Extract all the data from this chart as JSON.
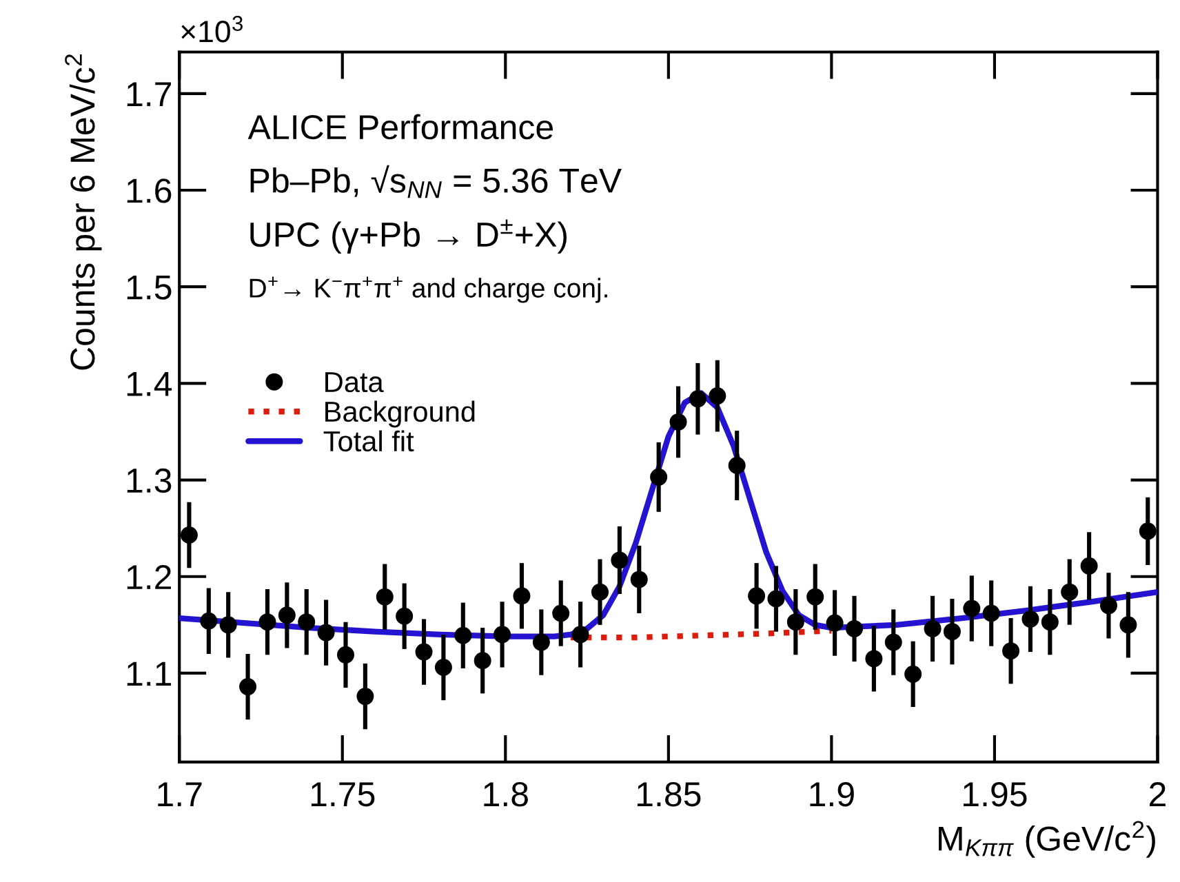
{
  "chart_data": {
    "type": "scatter",
    "xlabel": "M$_{Kππ}$ (GeV/c$^{2}$)",
    "ylabel": "Counts per 6 MeV/c$^{2}$",
    "annotations": [
      "×10$^{3}$",
      "ALICE Performance",
      "Pb–Pb, √s$_{NN}$ = 5.36 TeV",
      "UPC (γ+Pb → D$^{±}$+X)",
      "D$^{+}$→ K$^{−}$π$^{+}$π$^{+}$ and charge conj."
    ],
    "xlim": [
      1.7,
      2.0
    ],
    "ylim": [
      1.008,
      1.743
    ],
    "xticks": [
      1.7,
      1.75,
      1.8,
      1.85,
      1.9,
      1.95,
      {
        "value": 2.0,
        "label": "2"
      }
    ],
    "yticks": [
      1.1,
      1.2,
      1.3,
      1.4,
      1.5,
      1.6,
      1.7
    ],
    "grid": false,
    "legend": "center left",
    "series": [
      {
        "name": "Data",
        "marker": "circle",
        "color": "#000000",
        "x": [
          1.703,
          1.709,
          1.715,
          1.721,
          1.727,
          1.733,
          1.739,
          1.745,
          1.751,
          1.757,
          1.763,
          1.769,
          1.775,
          1.781,
          1.787,
          1.793,
          1.799,
          1.805,
          1.811,
          1.817,
          1.823,
          1.829,
          1.835,
          1.841,
          1.847,
          1.853,
          1.859,
          1.865,
          1.871,
          1.877,
          1.883,
          1.889,
          1.895,
          1.901,
          1.907,
          1.913,
          1.919,
          1.925,
          1.931,
          1.937,
          1.943,
          1.949,
          1.955,
          1.961,
          1.967,
          1.973,
          1.979,
          1.985,
          1.991,
          1.997
        ],
        "values": [
          1.243,
          1.154,
          1.15,
          1.086,
          1.153,
          1.16,
          1.153,
          1.142,
          1.119,
          1.076,
          1.179,
          1.159,
          1.122,
          1.106,
          1.139,
          1.113,
          1.14,
          1.18,
          1.132,
          1.162,
          1.14,
          1.184,
          1.217,
          1.197,
          1.303,
          1.36,
          1.384,
          1.387,
          1.315,
          1.18,
          1.177,
          1.153,
          1.179,
          1.152,
          1.146,
          1.115,
          1.132,
          1.099,
          1.146,
          1.143,
          1.167,
          1.162,
          1.123,
          1.156,
          1.153,
          1.184,
          1.211,
          1.17,
          1.15,
          1.247
        ],
        "errors": [
          0.034,
          0.034,
          0.034,
          0.034,
          0.034,
          0.034,
          0.034,
          0.034,
          0.034,
          0.034,
          0.034,
          0.034,
          0.034,
          0.034,
          0.034,
          0.034,
          0.034,
          0.034,
          0.034,
          0.034,
          0.034,
          0.034,
          0.035,
          0.035,
          0.036,
          0.037,
          0.037,
          0.037,
          0.036,
          0.034,
          0.034,
          0.034,
          0.034,
          0.034,
          0.034,
          0.034,
          0.034,
          0.034,
          0.034,
          0.034,
          0.034,
          0.034,
          0.034,
          0.034,
          0.034,
          0.034,
          0.035,
          0.034,
          0.034,
          0.035
        ]
      },
      {
        "name": "Background",
        "type": "line",
        "line_style": "dotted",
        "color": "#dd1c0c",
        "x": [
          1.82,
          1.84,
          1.86,
          1.88,
          1.9
        ],
        "values": [
          1.137,
          1.137,
          1.139,
          1.141,
          1.144
        ]
      },
      {
        "name": "Total fit",
        "type": "line",
        "line_style": "solid",
        "color": "#2414d2",
        "x": [
          1.7,
          1.72,
          1.74,
          1.76,
          1.78,
          1.8,
          1.815,
          1.82,
          1.825,
          1.83,
          1.835,
          1.84,
          1.845,
          1.85,
          1.855,
          1.86,
          1.865,
          1.87,
          1.875,
          1.88,
          1.885,
          1.89,
          1.895,
          1.9,
          1.92,
          1.94,
          1.96,
          1.98,
          2.0
        ],
        "values": [
          1.157,
          1.152,
          1.147,
          1.143,
          1.14,
          1.138,
          1.138,
          1.14,
          1.146,
          1.16,
          1.19,
          1.235,
          1.29,
          1.345,
          1.38,
          1.39,
          1.375,
          1.335,
          1.28,
          1.225,
          1.185,
          1.16,
          1.15,
          1.147,
          1.15,
          1.157,
          1.165,
          1.174,
          1.184
        ]
      }
    ]
  }
}
